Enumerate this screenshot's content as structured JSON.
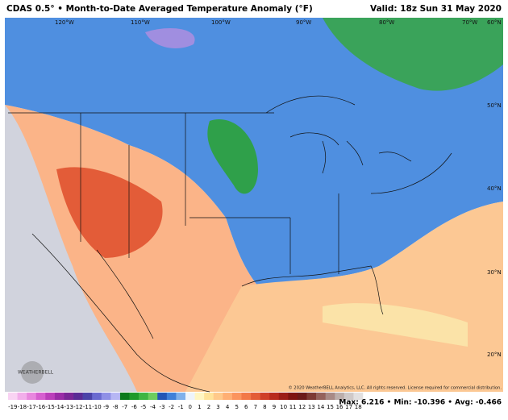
{
  "header": {
    "title": "CDAS 0.5° • Month-to-Date Averaged Temperature Anomaly (°F)",
    "valid": "Valid: 18z Sun 31 May 2020"
  },
  "map": {
    "lon_labels": [
      "120°W",
      "110°W",
      "100°W",
      "90°W",
      "80°W",
      "70°W"
    ],
    "lat_labels": [
      "60°N",
      "50°N",
      "40°N",
      "30°N",
      "20°N"
    ],
    "logo": "WEATHERBELL",
    "copyright": "© 2020 WeatherBELL Analytics, LLC. All rights reserved. License required for commercial distribution."
  },
  "colorbar": {
    "ticks": [
      -19,
      -18,
      -17,
      -16,
      -15,
      -14,
      -13,
      -12,
      -11,
      -10,
      -9,
      -8,
      -7,
      -6,
      -5,
      -4,
      -3,
      -2,
      -1,
      0,
      1,
      2,
      3,
      4,
      5,
      6,
      7,
      8,
      9,
      10,
      11,
      12,
      13,
      14,
      15,
      16,
      17,
      18
    ],
    "colors": [
      "#f9d3f3",
      "#f2aeea",
      "#e887de",
      "#d65fcf",
      "#bb3fba",
      "#9a2ca6",
      "#7a2696",
      "#5a2b95",
      "#4b43a8",
      "#6a6ad0",
      "#8f90e6",
      "#b6b6f4",
      "#0b7a1b",
      "#1f9a2a",
      "#3db542",
      "#6ccd5e",
      "#2456b5",
      "#3f80d8",
      "#7fb0ea",
      "#eef4fb",
      "#fff6c2",
      "#ffe39a",
      "#ffc98a",
      "#ffaf74",
      "#fb945e",
      "#f27848",
      "#e35c38",
      "#cf3f28",
      "#b82a1e",
      "#9c1c17",
      "#7e1412",
      "#6b1a1a",
      "#7d3a34",
      "#94625c",
      "#a88a86",
      "#bcaeab",
      "#cfc9c8",
      "#e2e0e0"
    ],
    "stats": "Max: 6.216 • Min: -10.396 • Avg: -0.466"
  }
}
